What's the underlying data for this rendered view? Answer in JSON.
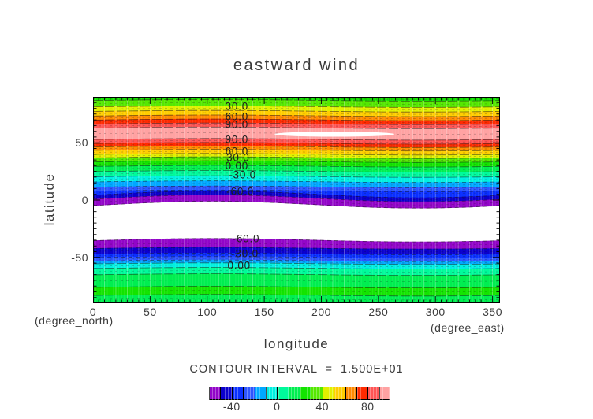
{
  "title": "eastward wind",
  "plot": {
    "x_axis": {
      "label": "longitude",
      "unit_caption": "(degree_east)",
      "ticks": [
        0,
        50,
        100,
        150,
        200,
        250,
        300,
        350
      ],
      "range": [
        0,
        356.5
      ],
      "minor_tick_step": 5
    },
    "y_axis": {
      "label": "latitude",
      "unit_caption": "(degree_north)",
      "ticks": [
        50,
        0,
        -50
      ],
      "range": [
        -90,
        90
      ],
      "minor_tick_step": 5
    }
  },
  "colorbar": {
    "caption": "CONTOUR INTERVAL  =  1.500E+01",
    "range": [
      -60,
      100
    ],
    "tick_values": [
      -40,
      0,
      40,
      80
    ],
    "segments": [
      {
        "from": -60,
        "to": -50,
        "color": "#9205C8"
      },
      {
        "from": -50,
        "to": -40,
        "color": "#0B00CC"
      },
      {
        "from": -40,
        "to": -30,
        "color": "#0A30FF"
      },
      {
        "from": -30,
        "to": -20,
        "color": "#2E55FF"
      },
      {
        "from": -20,
        "to": -10,
        "color": "#00A8FF"
      },
      {
        "from": -10,
        "to": 0,
        "color": "#00F0E0"
      },
      {
        "from": 0,
        "to": 10,
        "color": "#00FA9B"
      },
      {
        "from": 10,
        "to": 20,
        "color": "#00EE50"
      },
      {
        "from": 20,
        "to": 30,
        "color": "#13E400"
      },
      {
        "from": 30,
        "to": 40,
        "color": "#55E800"
      },
      {
        "from": 40,
        "to": 50,
        "color": "#E2F000"
      },
      {
        "from": 50,
        "to": 60,
        "color": "#FFCE00"
      },
      {
        "from": 60,
        "to": 70,
        "color": "#FF8A00"
      },
      {
        "from": 70,
        "to": 80,
        "color": "#FF2A00"
      },
      {
        "from": 80,
        "to": 90,
        "color": "#FF5555"
      },
      {
        "from": 90,
        "to": 100,
        "color": "#FFA2A2"
      }
    ]
  },
  "chart_data": {
    "type": "filled_contour",
    "title": "eastward wind",
    "xlabel": "longitude (degree_east)",
    "ylabel": "latitude (degree_north)",
    "x_range": [
      0,
      356.5
    ],
    "y_range": [
      -90,
      90
    ],
    "contour_interval": 15,
    "bands": [
      {
        "v": [
          20,
          30
        ],
        "lat": [
          90,
          87
        ],
        "color": "#13E400"
      },
      {
        "v": [
          30,
          40
        ],
        "lat": [
          87,
          81.5
        ],
        "color": "#55E800"
      },
      {
        "v": [
          40,
          50
        ],
        "lat": [
          81.5,
          77.5
        ],
        "color": "#E2F000"
      },
      {
        "v": [
          50,
          60
        ],
        "lat": [
          77.5,
          73.5
        ],
        "color": "#FFCE00"
      },
      {
        "v": [
          60,
          70
        ],
        "lat": [
          73.5,
          70
        ],
        "color": "#FF8A00"
      },
      {
        "v": [
          70,
          80
        ],
        "lat": [
          70,
          66.5
        ],
        "color": "#FF2A00"
      },
      {
        "v": [
          80,
          90
        ],
        "lat": [
          66.5,
          63
        ],
        "color": "#FF5555"
      },
      {
        "v": [
          90,
          100
        ],
        "lat": [
          63,
          53
        ],
        "color": "#FFA2A2"
      },
      {
        "v": [
          80,
          90
        ],
        "lat": [
          53,
          49.5
        ],
        "color": "#FF5555"
      },
      {
        "v": [
          70,
          80
        ],
        "lat": [
          49.5,
          46.5
        ],
        "color": "#FF2A00"
      },
      {
        "v": [
          60,
          70
        ],
        "lat": [
          46.5,
          43.5
        ],
        "color": "#FF8A00"
      },
      {
        "v": [
          50,
          60
        ],
        "lat": [
          43.5,
          40
        ],
        "color": "#FFCE00"
      },
      {
        "v": [
          40,
          50
        ],
        "lat": [
          40,
          37
        ],
        "color": "#E2F000"
      },
      {
        "v": [
          30,
          40
        ],
        "lat": [
          37,
          33.5
        ],
        "color": "#55E800"
      },
      {
        "v": [
          20,
          30
        ],
        "lat": [
          33.5,
          29.5
        ],
        "color": "#13E400"
      },
      {
        "v": [
          10,
          20
        ],
        "lat": [
          29.5,
          25
        ],
        "color": "#00EE50"
      },
      {
        "v": [
          0,
          10
        ],
        "lat": [
          25,
          20.5
        ],
        "color": "#00FA9B"
      },
      {
        "v": [
          -10,
          0
        ],
        "lat": [
          20.5,
          16
        ],
        "color": "#00F0E0"
      },
      {
        "v": [
          -20,
          -10
        ],
        "lat": [
          16,
          11.5
        ],
        "color": "#00A8FF"
      },
      {
        "v": [
          -30,
          -20
        ],
        "lat": [
          11.5,
          8
        ],
        "color": "#2E55FF"
      },
      {
        "v": [
          -40,
          -30
        ],
        "lat": [
          8,
          5
        ],
        "color": "#0A30FF"
      },
      {
        "v": [
          -50,
          -40
        ],
        "lat": [
          5,
          1.5
        ],
        "color": "#0B00CC"
      },
      {
        "v": [
          -60,
          -50
        ],
        "lat": [
          1.5,
          -4
        ],
        "color": "#9205C8"
      },
      {
        "v": [
          -60,
          -50
        ],
        "lat": [
          -35,
          -42
        ],
        "color": "#9205C8"
      },
      {
        "v": [
          -50,
          -40
        ],
        "lat": [
          -42,
          -47
        ],
        "color": "#0B00CC"
      },
      {
        "v": [
          -40,
          -30
        ],
        "lat": [
          -47,
          -50
        ],
        "color": "#0A30FF"
      },
      {
        "v": [
          -30,
          -20
        ],
        "lat": [
          -50,
          -53
        ],
        "color": "#2E55FF"
      },
      {
        "v": [
          -20,
          -10
        ],
        "lat": [
          -53,
          -55.5
        ],
        "color": "#00A8FF"
      },
      {
        "v": [
          -10,
          0
        ],
        "lat": [
          -55.5,
          -59.5
        ],
        "color": "#00F0E0"
      },
      {
        "v": [
          0,
          10
        ],
        "lat": [
          -59.5,
          -65
        ],
        "color": "#00FA9B"
      },
      {
        "v": [
          10,
          20
        ],
        "lat": [
          -65,
          -76
        ],
        "color": "#00EE50"
      },
      {
        "v": [
          20,
          30
        ],
        "lat": [
          -76,
          -83
        ],
        "color": "#13E400"
      },
      {
        "v": [
          10,
          20
        ],
        "lat": [
          -83,
          -90
        ],
        "color": "#00EE50"
      }
    ],
    "blank_below_scale_region": {
      "lat_top": -4,
      "lat_bottom": -35
    },
    "blank_above_scale_lens": {
      "lon_from": 159,
      "lon_to": 264,
      "lat_center": 57.5,
      "lat_halfheight": 2.2
    },
    "contour_labels": [
      {
        "text": "30.0",
        "lat": 81.8,
        "lon": 126
      },
      {
        "text": "60.0",
        "lat": 72.8,
        "lon": 126
      },
      {
        "text": "90.0",
        "lat": 66.0,
        "lon": 126
      },
      {
        "text": "90.0",
        "lat": 52.9,
        "lon": 126
      },
      {
        "text": "60.0",
        "lat": 42.6,
        "lon": 126
      },
      {
        "text": "30.0",
        "lat": 37.1,
        "lon": 127
      },
      {
        "text": "0.00",
        "lat": 29.9,
        "lon": 126
      },
      {
        "text": "-30.0",
        "lat": 22.0,
        "lon": 131
      },
      {
        "text": "-60.0",
        "lat": 7.6,
        "lon": 129
      },
      {
        "text": "-60.0",
        "lat": -33.7,
        "lon": 134
      },
      {
        "text": "-30.0",
        "lat": -46.7,
        "lon": 133
      },
      {
        "text": "0.00",
        "lat": -57.0,
        "lon": 128
      }
    ]
  }
}
